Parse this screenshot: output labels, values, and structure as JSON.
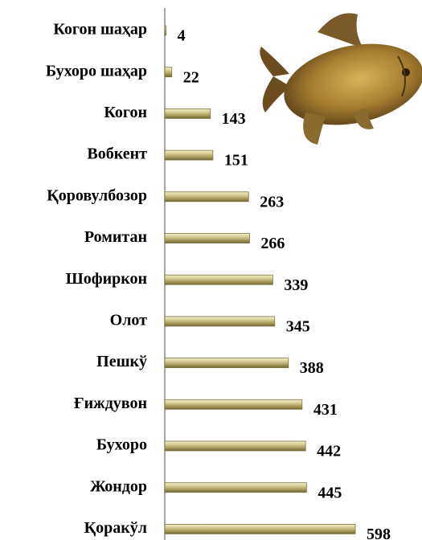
{
  "chart_data": {
    "type": "bar",
    "orientation": "horizontal",
    "categories": [
      "Когон шаҳар",
      "Бухоро шаҳар",
      "Когон",
      "Вобкент",
      "Қоровулбозор",
      "Ромитан",
      "Шофиркон",
      "Олот",
      "Пешкў",
      "Ғиждувон",
      "Бухоро",
      "Жондор",
      "Қоракўл"
    ],
    "values": [
      4,
      22,
      143,
      151,
      263,
      266,
      339,
      345,
      388,
      431,
      442,
      445,
      598
    ],
    "color": "#b8ad6e"
  }
}
